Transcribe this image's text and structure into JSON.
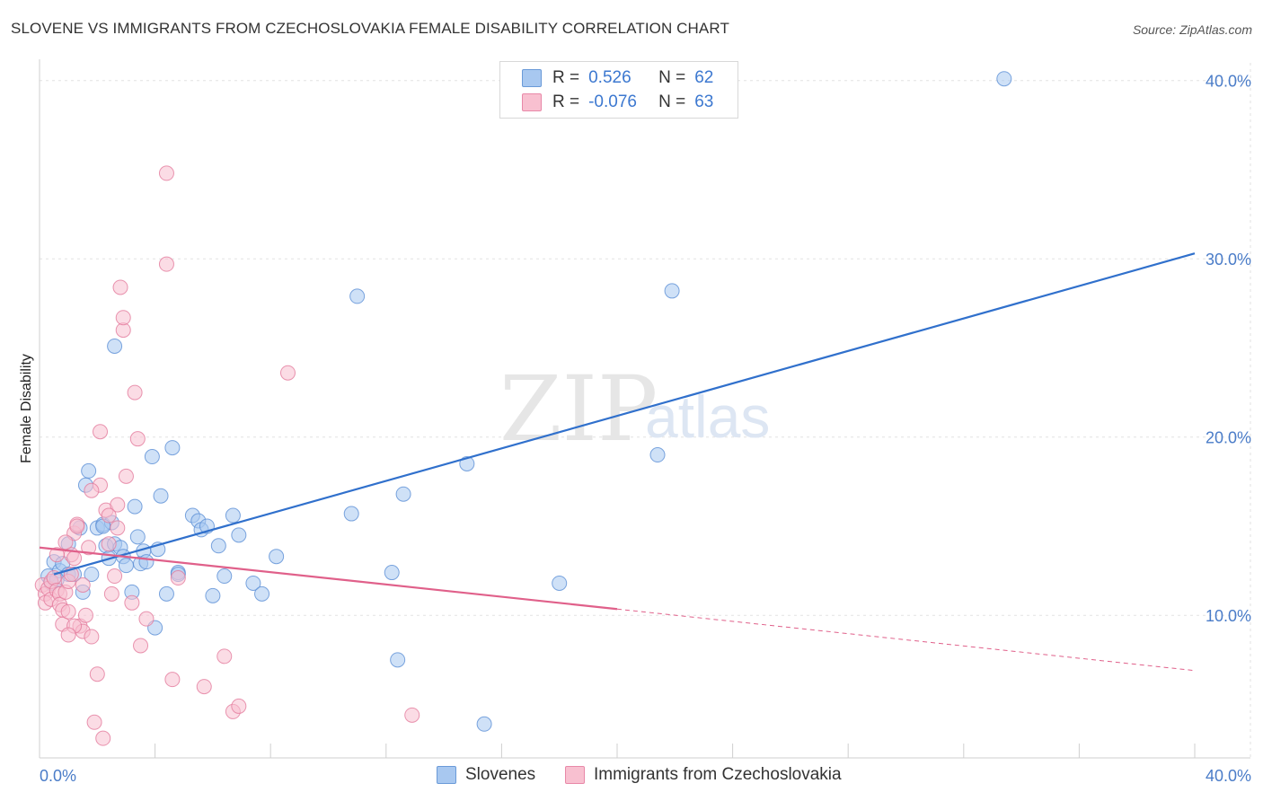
{
  "title": "SLOVENE VS IMMIGRANTS FROM CZECHOSLOVAKIA FEMALE DISABILITY CORRELATION CHART",
  "source": "Source: ZipAtlas.com",
  "watermark": {
    "zip": "ZIP",
    "atlas": "atlas"
  },
  "legend": {
    "rows": [
      {
        "r_label": "R =",
        "r_value": "0.526",
        "n_label": "N =",
        "n_value": "62",
        "color": "#a8c8f0",
        "edge": "#6a9ad8"
      },
      {
        "r_label": "R =",
        "r_value": "-0.076",
        "n_label": "N =",
        "n_value": "63",
        "color": "#f8c0d0",
        "edge": "#e888a8"
      }
    ]
  },
  "bottom_legend": [
    {
      "label": "Slovenes",
      "color": "#a8c8f0",
      "edge": "#6a9ad8"
    },
    {
      "label": "Immigrants from Czechoslovakia",
      "color": "#f8c0d0",
      "edge": "#e888a8"
    }
  ],
  "chart_data": {
    "type": "scatter",
    "title": "SLOVENE VS IMMIGRANTS FROM CZECHOSLOVAKIA FEMALE DISABILITY CORRELATION CHART",
    "xlabel": "",
    "ylabel": "Female Disability",
    "xlim": [
      0,
      40
    ],
    "ylim": [
      2,
      42
    ],
    "x_tick_labels": [
      {
        "value": 0,
        "label": "0.0%"
      },
      {
        "value": 40,
        "label": "40.0%"
      }
    ],
    "y_tick_labels": [
      {
        "value": 10,
        "label": "10.0%"
      },
      {
        "value": 20,
        "label": "20.0%"
      },
      {
        "value": 30,
        "label": "30.0%"
      },
      {
        "value": 40,
        "label": "40.0%"
      }
    ],
    "series": [
      {
        "name": "Slovenes",
        "color": "#a8c8f0",
        "edge": "#5b8fd6",
        "trend": {
          "x": [
            0.5,
            40
          ],
          "y": [
            12.3,
            30.3
          ],
          "color": "#3070cc",
          "dashed_from": null
        },
        "points": [
          [
            0.3,
            12.2
          ],
          [
            0.4,
            11.8
          ],
          [
            0.5,
            13.0
          ],
          [
            0.7,
            12.5
          ],
          [
            0.8,
            12.9
          ],
          [
            1.0,
            12.3
          ],
          [
            1.0,
            14.0
          ],
          [
            1.2,
            12.3
          ],
          [
            1.4,
            14.9
          ],
          [
            1.5,
            11.3
          ],
          [
            1.6,
            17.3
          ],
          [
            1.7,
            18.1
          ],
          [
            1.8,
            12.3
          ],
          [
            2.0,
            14.9
          ],
          [
            2.2,
            15.1
          ],
          [
            2.3,
            13.9
          ],
          [
            2.4,
            13.2
          ],
          [
            2.5,
            15.2
          ],
          [
            2.6,
            14.0
          ],
          [
            2.8,
            13.8
          ],
          [
            2.9,
            13.3
          ],
          [
            3.0,
            12.8
          ],
          [
            3.2,
            11.3
          ],
          [
            3.3,
            16.1
          ],
          [
            3.4,
            14.4
          ],
          [
            3.5,
            12.9
          ],
          [
            3.6,
            13.6
          ],
          [
            3.7,
            13.0
          ],
          [
            3.9,
            18.9
          ],
          [
            4.0,
            9.3
          ],
          [
            4.1,
            13.7
          ],
          [
            4.2,
            16.7
          ],
          [
            4.4,
            11.2
          ],
          [
            4.6,
            19.4
          ],
          [
            4.8,
            12.4
          ],
          [
            5.3,
            15.6
          ],
          [
            5.5,
            15.3
          ],
          [
            5.6,
            14.8
          ],
          [
            5.8,
            15.0
          ],
          [
            6.0,
            11.1
          ],
          [
            6.2,
            13.9
          ],
          [
            6.4,
            12.2
          ],
          [
            6.7,
            15.6
          ],
          [
            6.9,
            14.5
          ],
          [
            7.4,
            11.8
          ],
          [
            7.7,
            11.2
          ],
          [
            8.2,
            13.3
          ],
          [
            10.8,
            15.7
          ],
          [
            11.0,
            27.9
          ],
          [
            12.2,
            12.4
          ],
          [
            12.4,
            7.5
          ],
          [
            12.6,
            16.8
          ],
          [
            14.8,
            18.5
          ],
          [
            15.4,
            3.9
          ],
          [
            18.0,
            11.8
          ],
          [
            21.4,
            19.0
          ],
          [
            21.9,
            28.2
          ],
          [
            33.4,
            40.1
          ],
          [
            2.6,
            25.1
          ],
          [
            4.8,
            12.3
          ],
          [
            0.6,
            12.0
          ],
          [
            2.2,
            15.0
          ]
        ]
      },
      {
        "name": "Immigrants from Czechoslovakia",
        "color": "#f8c0d0",
        "edge": "#e47a9c",
        "trend": {
          "x": [
            0.0,
            40
          ],
          "y": [
            13.8,
            6.9
          ],
          "color": "#e0608a",
          "dashed_from": 20.0
        },
        "points": [
          [
            0.1,
            11.7
          ],
          [
            0.2,
            11.2
          ],
          [
            0.2,
            10.7
          ],
          [
            0.3,
            11.5
          ],
          [
            0.4,
            11.9
          ],
          [
            0.4,
            10.9
          ],
          [
            0.5,
            12.1
          ],
          [
            0.6,
            11.4
          ],
          [
            0.7,
            11.2
          ],
          [
            0.7,
            10.6
          ],
          [
            0.8,
            10.3
          ],
          [
            0.8,
            9.5
          ],
          [
            0.9,
            11.3
          ],
          [
            1.0,
            10.2
          ],
          [
            1.0,
            11.9
          ],
          [
            1.1,
            12.3
          ],
          [
            1.1,
            13.4
          ],
          [
            1.2,
            13.2
          ],
          [
            1.2,
            14.6
          ],
          [
            1.3,
            15.1
          ],
          [
            1.4,
            9.4
          ],
          [
            1.5,
            9.1
          ],
          [
            1.5,
            11.7
          ],
          [
            1.6,
            10.0
          ],
          [
            1.7,
            13.8
          ],
          [
            1.8,
            8.8
          ],
          [
            1.9,
            4.0
          ],
          [
            2.0,
            6.7
          ],
          [
            2.1,
            17.3
          ],
          [
            2.1,
            20.3
          ],
          [
            2.2,
            3.1
          ],
          [
            2.3,
            15.9
          ],
          [
            2.4,
            14.0
          ],
          [
            2.5,
            11.2
          ],
          [
            2.6,
            12.2
          ],
          [
            2.7,
            16.2
          ],
          [
            2.7,
            14.9
          ],
          [
            2.8,
            28.4
          ],
          [
            2.9,
            26.0
          ],
          [
            2.9,
            26.7
          ],
          [
            3.0,
            17.8
          ],
          [
            3.2,
            10.7
          ],
          [
            3.3,
            22.5
          ],
          [
            3.4,
            19.9
          ],
          [
            3.5,
            8.3
          ],
          [
            3.7,
            9.8
          ],
          [
            4.4,
            34.8
          ],
          [
            4.4,
            29.7
          ],
          [
            4.6,
            6.4
          ],
          [
            4.8,
            12.1
          ],
          [
            5.7,
            6.0
          ],
          [
            6.4,
            7.7
          ],
          [
            6.7,
            4.6
          ],
          [
            6.9,
            4.9
          ],
          [
            8.6,
            23.6
          ],
          [
            12.9,
            4.4
          ],
          [
            1.3,
            15.0
          ],
          [
            0.9,
            14.1
          ],
          [
            1.8,
            17.0
          ],
          [
            2.4,
            15.6
          ],
          [
            1.2,
            9.4
          ],
          [
            1.0,
            8.9
          ],
          [
            0.6,
            13.4
          ]
        ]
      }
    ]
  }
}
